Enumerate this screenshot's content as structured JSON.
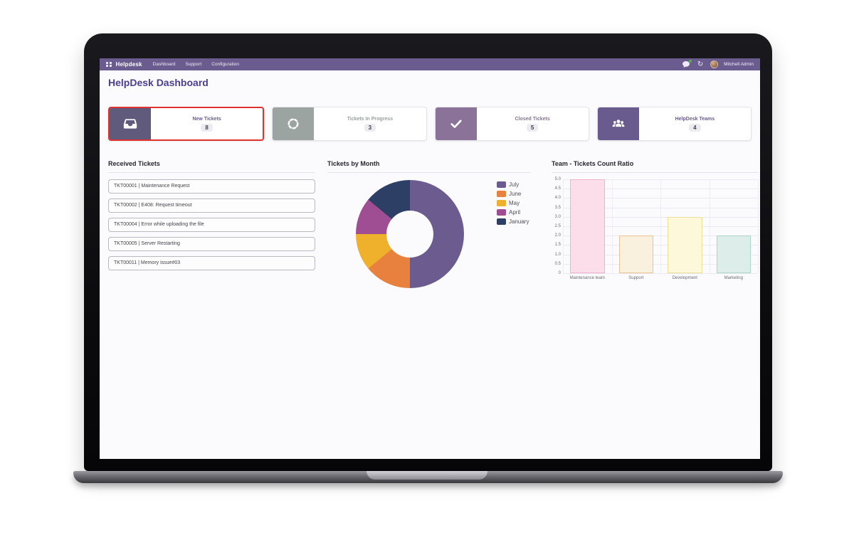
{
  "nav": {
    "brand": "Helpdesk",
    "items": [
      "Dashboard",
      "Support",
      "Configuration"
    ],
    "icons": [
      "messages-icon",
      "activities-icon"
    ],
    "user_name": "Mitchell Admin"
  },
  "page": {
    "title": "HelpDesk Dashboard"
  },
  "kpi_cards": [
    {
      "label": "New Tickets",
      "value": "8",
      "icon": "inbox-icon",
      "accent": "#605a7c",
      "label_color": "#6c5d90",
      "highlighted": true
    },
    {
      "label": "Tickets In Progress",
      "value": "3",
      "icon": "spinner-icon",
      "accent": "#9ba4a0",
      "label_color": "#97a19e",
      "highlighted": false
    },
    {
      "label": "Closed Tickets",
      "value": "5",
      "icon": "check-icon",
      "accent": "#8b7299",
      "label_color": "#8b7299",
      "highlighted": false
    },
    {
      "label": "HelpDesk Teams",
      "value": "4",
      "icon": "team-icon",
      "accent": "#6a5b8e",
      "label_color": "#6a5b8e",
      "highlighted": false
    }
  ],
  "received_tickets": {
    "title": "Received Tickets",
    "items": [
      "TKT00001 | Maintenance Request",
      "TKT00002 | E408: Request timeout",
      "TKT00004 | Error while uploading the file",
      "TKT00005 | Server Restarting",
      "TKT00011 | Memory issue#03"
    ]
  },
  "chart_data": [
    {
      "type": "pie",
      "donut": true,
      "title": "Tickets by Month",
      "labels": [
        "July",
        "June",
        "May",
        "April",
        "January"
      ],
      "values": [
        50,
        14,
        11,
        11,
        14
      ],
      "values_unit": "percent (estimated from slice angles)",
      "colors": [
        "#6b5b8f",
        "#e8813d",
        "#efb02c",
        "#a04e93",
        "#2e3f66"
      ],
      "legend_position": "right"
    },
    {
      "type": "bar",
      "title": "Team - Tickets Count Ratio",
      "categories": [
        "Maintenance team",
        "Support",
        "Development",
        "Marketing"
      ],
      "values": [
        5,
        2,
        3,
        2
      ],
      "bar_fill": [
        "#fbdeea",
        "#faf0de",
        "#fdf8da",
        "#ddeeea"
      ],
      "bar_border": [
        "#f2afce",
        "#e9c693",
        "#ece09a",
        "#a9d5ca"
      ],
      "xlabel": "",
      "ylabel": "",
      "ylim": [
        0,
        5
      ],
      "yticks": [
        "5.0",
        "4.5",
        "4.0",
        "3.5",
        "3.0",
        "2.5",
        "2.0",
        "1.5",
        "1.0",
        "0.5",
        "0"
      ],
      "grid": true,
      "legend_position": "none"
    }
  ],
  "colors": {
    "navbar": "#6a5c8e",
    "page_title": "#4c3e91",
    "highlight_border": "#e0312d"
  }
}
